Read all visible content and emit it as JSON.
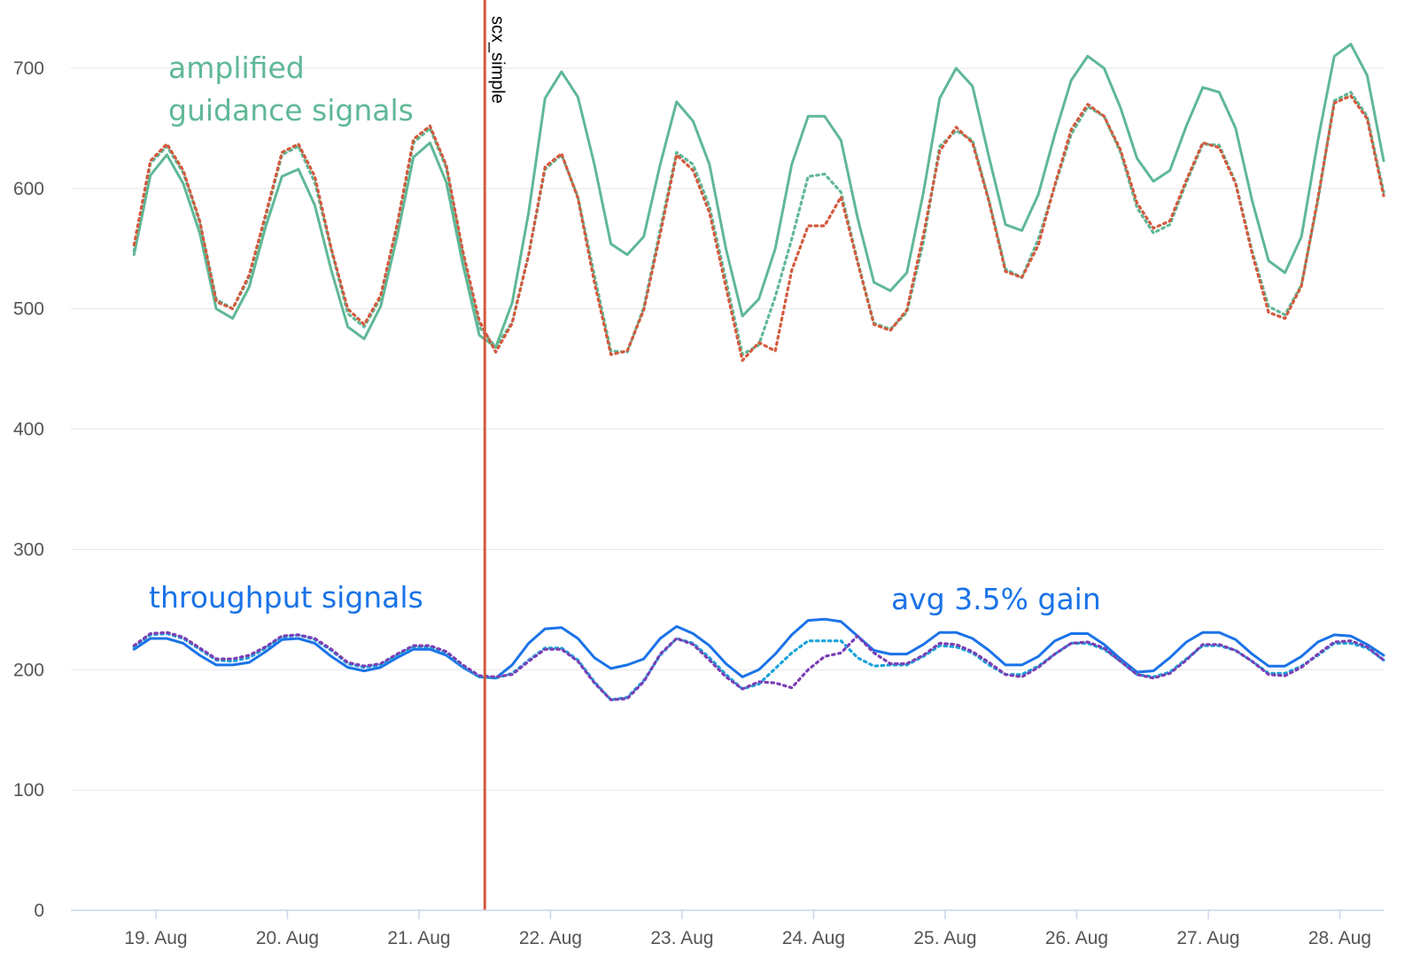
{
  "chart_data": {
    "type": "line",
    "title": "",
    "xlabel": "",
    "ylabel": "",
    "ylim": [
      0,
      700
    ],
    "yticks": [
      0,
      100,
      200,
      300,
      400,
      500,
      600,
      700
    ],
    "x_start_date": "2023-08-18T20:00",
    "x_step_hours": 3,
    "xticks": [
      "19. Aug",
      "20. Aug",
      "21. Aug",
      "22. Aug",
      "23. Aug",
      "24. Aug",
      "25. Aug",
      "26. Aug",
      "27. Aug",
      "28. Aug"
    ],
    "grid": true,
    "legend": "none",
    "event_marker": {
      "label": "scx_simple",
      "x": "2023-08-21T12:00",
      "color": "#d35a3e"
    },
    "annotations": [
      {
        "id": "guidance",
        "lines": [
          "amplified",
          "guidance signals"
        ],
        "color": "#5fb896"
      },
      {
        "id": "throughput",
        "lines": [
          "throughput signals"
        ],
        "color": "#1a73e8"
      },
      {
        "id": "gain",
        "lines": [
          "avg 3.5% gain"
        ],
        "color": "#1a73e8"
      }
    ],
    "series": [
      {
        "color": "#5fb896",
        "style": "solid",
        "values": [
          545,
          611,
          628,
          604,
          563,
          500,
          492,
          518,
          568,
          610,
          616,
          586,
          532,
          485,
          475,
          502,
          560,
          626,
          638,
          605,
          537,
          478,
          468,
          505,
          580,
          675,
          697,
          676,
          620,
          554,
          545,
          560,
          620,
          672,
          656,
          620,
          550,
          494,
          508,
          550,
          620,
          660,
          660,
          640,
          576,
          522,
          515,
          530,
          596,
          675,
          700,
          685,
          626,
          570,
          565,
          595,
          645,
          690,
          710,
          700,
          667,
          625,
          606,
          615,
          652,
          684,
          680,
          650,
          590,
          540,
          530,
          560,
          640,
          710,
          720,
          694,
          623
        ]
      },
      {
        "color": "#5fb896",
        "style": "dotted",
        "values": [
          548,
          621,
          635,
          613,
          572,
          508,
          500,
          526,
          576,
          628,
          635,
          605,
          549,
          496,
          485,
          509,
          569,
          638,
          650,
          617,
          545,
          485,
          468,
          489,
          545,
          616,
          628,
          593,
          528,
          465,
          464,
          501,
          566,
          630,
          620,
          585,
          524,
          462,
          470,
          510,
          558,
          610,
          612,
          597,
          540,
          488,
          483,
          497,
          555,
          635,
          648,
          640,
          590,
          533,
          526,
          558,
          602,
          645,
          668,
          660,
          630,
          584,
          563,
          570,
          605,
          637,
          636,
          605,
          548,
          502,
          495,
          520,
          590,
          673,
          680,
          660,
          597
        ]
      },
      {
        "color": "#d35a3e",
        "style": "dotted",
        "values": [
          553,
          623,
          637,
          615,
          573,
          506,
          500,
          528,
          578,
          630,
          637,
          610,
          550,
          500,
          487,
          511,
          570,
          641,
          652,
          619,
          548,
          490,
          464,
          488,
          545,
          618,
          629,
          592,
          522,
          462,
          465,
          499,
          562,
          628,
          615,
          580,
          518,
          457,
          472,
          465,
          532,
          569,
          569,
          593,
          539,
          487,
          482,
          499,
          561,
          631,
          651,
          638,
          589,
          531,
          526,
          553,
          603,
          649,
          670,
          660,
          632,
          588,
          567,
          573,
          607,
          638,
          634,
          604,
          546,
          497,
          492,
          519,
          592,
          671,
          677,
          658,
          594
        ]
      },
      {
        "color": "#1a73e8",
        "style": "solid",
        "values": [
          217,
          226,
          226,
          222,
          212,
          204,
          204,
          206,
          215,
          225,
          226,
          222,
          211,
          202,
          199,
          202,
          210,
          217,
          217,
          212,
          202,
          194,
          193,
          204,
          222,
          234,
          235,
          226,
          210,
          201,
          204,
          209,
          226,
          236,
          230,
          220,
          205,
          194,
          200,
          213,
          229,
          241,
          242,
          240,
          228,
          216,
          213,
          213,
          221,
          231,
          231,
          226,
          216,
          204,
          204,
          211,
          224,
          230,
          230,
          221,
          209,
          198,
          199,
          210,
          223,
          231,
          231,
          225,
          213,
          203,
          203,
          211,
          223,
          229,
          228,
          221,
          212
        ]
      },
      {
        "color": "#1aa3d9",
        "style": "dotted",
        "values": [
          219,
          229,
          230,
          226,
          217,
          208,
          207,
          210,
          218,
          227,
          229,
          225,
          216,
          205,
          202,
          204,
          212,
          219,
          219,
          214,
          203,
          194,
          193,
          197,
          208,
          218,
          218,
          208,
          190,
          175,
          177,
          191,
          212,
          226,
          222,
          210,
          196,
          184,
          188,
          201,
          214,
          224,
          224,
          224,
          210,
          203,
          204,
          204,
          211,
          220,
          219,
          214,
          204,
          196,
          196,
          203,
          213,
          222,
          222,
          217,
          207,
          196,
          194,
          198,
          209,
          220,
          220,
          216,
          207,
          197,
          197,
          203,
          212,
          222,
          222,
          218,
          208
        ]
      },
      {
        "color": "#7b3fb5",
        "style": "dotted",
        "values": [
          220,
          230,
          231,
          227,
          218,
          209,
          209,
          212,
          219,
          228,
          229,
          226,
          217,
          206,
          203,
          205,
          213,
          220,
          220,
          215,
          204,
          195,
          194,
          196,
          207,
          217,
          217,
          207,
          189,
          175,
          176,
          190,
          213,
          226,
          221,
          208,
          194,
          184,
          190,
          189,
          185,
          200,
          211,
          214,
          228,
          214,
          205,
          205,
          212,
          222,
          221,
          215,
          206,
          196,
          194,
          202,
          213,
          222,
          223,
          218,
          207,
          196,
          193,
          197,
          208,
          221,
          221,
          216,
          207,
          196,
          195,
          202,
          213,
          223,
          224,
          219,
          208
        ]
      }
    ]
  }
}
